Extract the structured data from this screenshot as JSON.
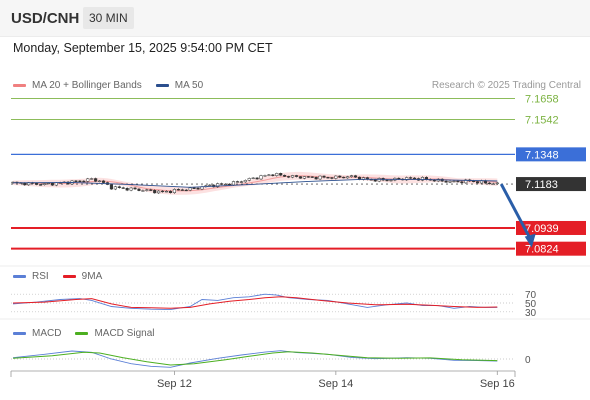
{
  "header": {
    "pair": "USD/CNH",
    "timeframe": "30 MIN"
  },
  "datetime": "Monday, September 15, 2025 9:54:00 PM CET",
  "legend_main": [
    {
      "label": "MA 20 + Bollinger Bands",
      "color": "#f08080"
    },
    {
      "label": "MA 50",
      "color": "#2b4f8e"
    }
  ],
  "copyright": "Research © 2025 Trading Central",
  "legend_rsi": [
    {
      "label": "RSI",
      "color": "#5b7fd6"
    },
    {
      "label": "9MA",
      "color": "#e41e26"
    }
  ],
  "legend_macd": [
    {
      "label": "MACD",
      "color": "#5b7fd6"
    },
    {
      "label": "MACD Signal",
      "color": "#4caf20"
    }
  ],
  "colors": {
    "resistance": "#7cb342",
    "pivot": "#3b6fd8",
    "support": "#e41e26",
    "last_price": "#333333",
    "arrow": "#2a5ea8",
    "candle_up": "#ffffff",
    "candle_down": "#333333",
    "band_fill": "#fbdada"
  },
  "chart_data": {
    "type": "candlestick",
    "ylim": [
      7.07,
      7.17
    ],
    "x_ticks": [
      {
        "label": "Sep 12",
        "index": 41
      },
      {
        "label": "Sep 14",
        "index": 82
      },
      {
        "label": "Sep 16",
        "index": 123
      }
    ],
    "n_bars": 128,
    "levels": [
      {
        "value": 7.1658,
        "label": "7.1658",
        "kind": "resistance"
      },
      {
        "value": 7.1542,
        "label": "7.1542",
        "kind": "resistance"
      },
      {
        "value": 7.1348,
        "label": "7.1348",
        "kind": "pivot"
      },
      {
        "value": 7.1183,
        "label": "7.1183",
        "kind": "last"
      },
      {
        "value": 7.0939,
        "label": "7.0939",
        "kind": "support"
      },
      {
        "value": 7.0824,
        "label": "7.0824",
        "kind": "support"
      }
    ],
    "close_path": [
      [
        0,
        7.119
      ],
      [
        8,
        7.1182
      ],
      [
        15,
        7.1195
      ],
      [
        20,
        7.121
      ],
      [
        22,
        7.12
      ],
      [
        25,
        7.1165
      ],
      [
        30,
        7.1155
      ],
      [
        35,
        7.1145
      ],
      [
        38,
        7.1138
      ],
      [
        42,
        7.115
      ],
      [
        46,
        7.1158
      ],
      [
        50,
        7.1175
      ],
      [
        55,
        7.1185
      ],
      [
        58,
        7.12
      ],
      [
        63,
        7.1225
      ],
      [
        66,
        7.1238
      ],
      [
        70,
        7.1225
      ],
      [
        76,
        7.122
      ],
      [
        82,
        7.122
      ],
      [
        86,
        7.1225
      ],
      [
        90,
        7.1208
      ],
      [
        95,
        7.1205
      ],
      [
        100,
        7.1215
      ],
      [
        104,
        7.1212
      ],
      [
        108,
        7.1202
      ],
      [
        112,
        7.1195
      ],
      [
        116,
        7.12
      ],
      [
        121,
        7.1188
      ],
      [
        123,
        7.1183
      ]
    ],
    "ma50_path": [
      [
        0,
        7.119
      ],
      [
        15,
        7.1192
      ],
      [
        30,
        7.118
      ],
      [
        45,
        7.1165
      ],
      [
        60,
        7.118
      ],
      [
        75,
        7.1198
      ],
      [
        90,
        7.121
      ],
      [
        105,
        7.1208
      ],
      [
        123,
        7.12
      ]
    ],
    "forecast_arrow": {
      "from": [
        124,
        7.1183
      ],
      "to": [
        132,
        7.0824
      ]
    },
    "rsi": {
      "levels": [
        70,
        50,
        30
      ],
      "ylim": [
        25,
        75
      ],
      "rsi_path": [
        [
          0,
          48
        ],
        [
          6,
          52
        ],
        [
          12,
          58
        ],
        [
          17,
          60
        ],
        [
          20,
          56
        ],
        [
          25,
          42
        ],
        [
          30,
          38
        ],
        [
          35,
          36
        ],
        [
          40,
          35
        ],
        [
          45,
          42
        ],
        [
          48,
          58
        ],
        [
          52,
          56
        ],
        [
          56,
          62
        ],
        [
          60,
          64
        ],
        [
          64,
          70
        ],
        [
          67,
          68
        ],
        [
          70,
          62
        ],
        [
          75,
          58
        ],
        [
          80,
          56
        ],
        [
          85,
          48
        ],
        [
          90,
          40
        ],
        [
          95,
          46
        ],
        [
          100,
          50
        ],
        [
          104,
          44
        ],
        [
          108,
          44
        ],
        [
          112,
          38
        ],
        [
          116,
          42
        ],
        [
          120,
          40
        ],
        [
          123,
          40
        ]
      ],
      "ma9_path": [
        [
          0,
          50
        ],
        [
          8,
          52
        ],
        [
          16,
          58
        ],
        [
          20,
          60
        ],
        [
          25,
          48
        ],
        [
          30,
          40
        ],
        [
          35,
          39
        ],
        [
          40,
          38
        ],
        [
          45,
          40
        ],
        [
          50,
          48
        ],
        [
          55,
          54
        ],
        [
          60,
          58
        ],
        [
          64,
          62
        ],
        [
          68,
          64
        ],
        [
          72,
          62
        ],
        [
          78,
          56
        ],
        [
          85,
          50
        ],
        [
          92,
          46
        ],
        [
          100,
          47
        ],
        [
          106,
          45
        ],
        [
          112,
          42
        ],
        [
          118,
          40
        ],
        [
          123,
          41
        ]
      ]
    },
    "macd": {
      "zero_label": "0",
      "ylim": [
        -1.2,
        1.2
      ],
      "macd_path": [
        [
          0,
          0.1
        ],
        [
          8,
          0.35
        ],
        [
          15,
          0.6
        ],
        [
          20,
          0.5
        ],
        [
          25,
          0.0
        ],
        [
          30,
          -0.35
        ],
        [
          35,
          -0.55
        ],
        [
          40,
          -0.62
        ],
        [
          45,
          -0.3
        ],
        [
          52,
          0.05
        ],
        [
          58,
          0.3
        ],
        [
          64,
          0.52
        ],
        [
          68,
          0.62
        ],
        [
          72,
          0.48
        ],
        [
          80,
          0.35
        ],
        [
          86,
          0.12
        ],
        [
          92,
          0.02
        ],
        [
          100,
          0.1
        ],
        [
          106,
          0.05
        ],
        [
          112,
          -0.1
        ],
        [
          118,
          -0.12
        ],
        [
          123,
          -0.15
        ]
      ],
      "signal_path": [
        [
          0,
          0.05
        ],
        [
          10,
          0.25
        ],
        [
          18,
          0.5
        ],
        [
          22,
          0.45
        ],
        [
          28,
          0.1
        ],
        [
          34,
          -0.2
        ],
        [
          40,
          -0.45
        ],
        [
          46,
          -0.35
        ],
        [
          54,
          -0.05
        ],
        [
          60,
          0.2
        ],
        [
          66,
          0.45
        ],
        [
          70,
          0.55
        ],
        [
          76,
          0.45
        ],
        [
          84,
          0.25
        ],
        [
          90,
          0.1
        ],
        [
          98,
          0.05
        ],
        [
          106,
          0.08
        ],
        [
          114,
          -0.05
        ],
        [
          123,
          -0.12
        ]
      ]
    }
  }
}
